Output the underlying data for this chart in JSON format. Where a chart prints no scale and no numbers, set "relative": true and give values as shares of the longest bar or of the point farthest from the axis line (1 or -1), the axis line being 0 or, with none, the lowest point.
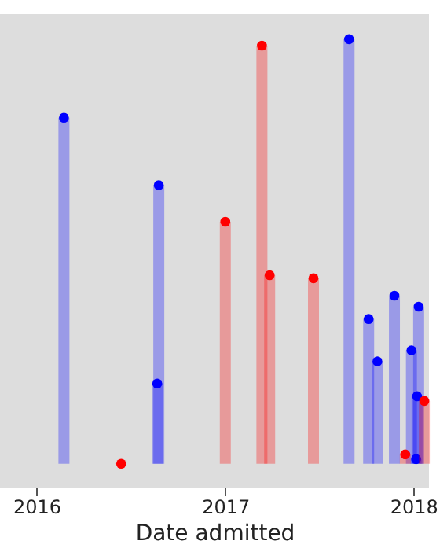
{
  "chart_data": {
    "type": "lollipop",
    "relative": true,
    "xlabel": "Date admitted",
    "xlim": [
      "2015-10-22",
      "2018-01-31"
    ],
    "xticks": [
      "2016",
      "2017",
      "2018"
    ],
    "series": [
      {
        "color": "#0000ff",
        "x": [
          "2016-02-23",
          "2016-08-22",
          "2016-08-25",
          "2017-08-29",
          "2017-10-06",
          "2017-10-23",
          "2017-11-25",
          "2017-12-28",
          "2018-01-06",
          "2018-01-08",
          "2018-01-11"
        ],
        "values": [
          0.815,
          0.189,
          0.656,
          1.0,
          0.341,
          0.241,
          0.396,
          0.267,
          0.011,
          0.159,
          0.37
        ]
      },
      {
        "color": "#ff0000",
        "x": [
          "2016-06-13",
          "2017-01-01",
          "2017-03-13",
          "2017-03-28",
          "2017-06-21",
          "2017-12-16",
          "2018-01-22"
        ],
        "values": [
          0.0,
          0.57,
          0.985,
          0.444,
          0.437,
          0.022,
          0.148
        ]
      }
    ]
  }
}
